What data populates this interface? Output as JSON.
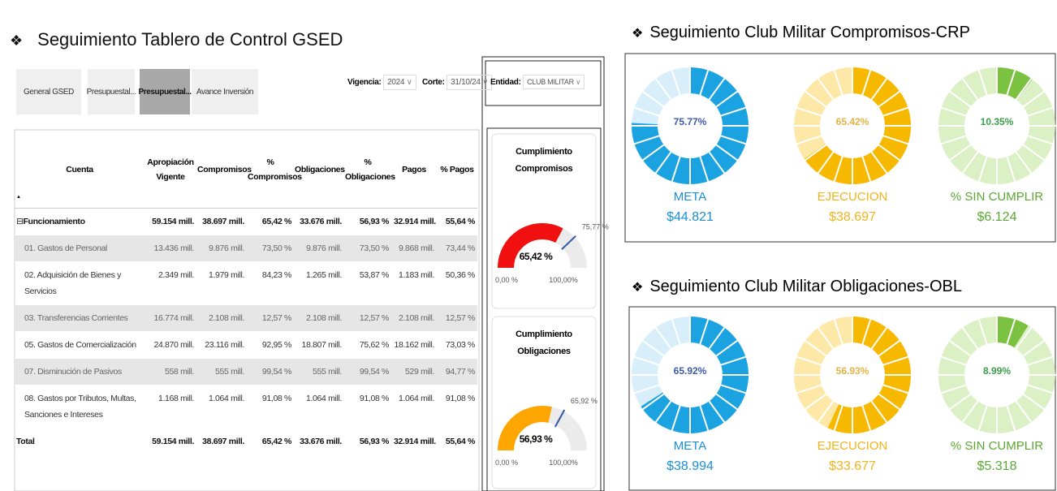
{
  "left": {
    "icon": "❖",
    "title": "Seguimiento Tablero de Control GSED",
    "tabs": [
      "General GSED",
      "Presupuestal...",
      "Presupuestal...",
      "Avance Inversión"
    ],
    "filters": {
      "vigencia_label": "Vigencia:",
      "vigencia": "2024",
      "corte_label": "Corte:",
      "corte": "31/10/24",
      "entidad_label": "Entidad:",
      "entidad": "CLUB MILITAR"
    },
    "table": {
      "columns": [
        "Cuenta",
        "Apropiación Vigente",
        "Compromisos",
        "% Compromisos",
        "Obligaciones",
        "% Obligaciones",
        "Pagos",
        "% Pagos"
      ],
      "rows": [
        [
          "Funcionamiento",
          "59.154 mill.",
          "38.697 mill.",
          "65,42 %",
          "33.676 mill.",
          "56,93 %",
          "32.914 mill.",
          "55,64 %"
        ],
        [
          "01. Gastos de Personal",
          "13.436 mill.",
          "9.876 mill.",
          "73,50 %",
          "9.876 mill.",
          "73,50 %",
          "9.868 mill.",
          "73,44 %"
        ],
        [
          "02. Adquisición de Bienes y Servicios",
          "2.349 mill.",
          "1.979 mill.",
          "84,23 %",
          "1.265 mill.",
          "53,87 %",
          "1.183 mill.",
          "50,36 %"
        ],
        [
          "03. Transferencias Corrientes",
          "16.774 mill.",
          "2.108 mill.",
          "12,57 %",
          "2.108 mill.",
          "12,57 %",
          "2.108 mill.",
          "12,57 %"
        ],
        [
          "05. Gastos de Comercialización",
          "24.870 mill.",
          "23.116 mill.",
          "92,95 %",
          "18.807 mill.",
          "75,62 %",
          "18.162 mill.",
          "73,03 %"
        ],
        [
          "07. Disminución de Pasivos",
          "558 mill.",
          "555 mill.",
          "99,54 %",
          "555 mill.",
          "99,54 %",
          "529 mill.",
          "94,77 %"
        ],
        [
          "08. Gastos por Tributos, Multas, Sanciones e Intereses",
          "1.168 mill.",
          "1.064 mill.",
          "91,08 %",
          "1.064 mill.",
          "91,08 %",
          "1.064 mill.",
          "91,08 %"
        ],
        [
          "Total",
          "59.154 mill.",
          "38.697 mill.",
          "65,42 %",
          "33.676 mill.",
          "56,93 %",
          "32.914 mill.",
          "55,64 %"
        ]
      ]
    },
    "gauges": [
      {
        "title": "Cumplimiento Compromisos",
        "value": 65.42,
        "label": "65,42 %",
        "target": 75.77,
        "target_label": "75,77 %",
        "min": 0,
        "min_label": "0,00 %",
        "max": 100,
        "max_label": "100,00%",
        "color": "#f01010"
      },
      {
        "title": "Cumplimiento Obligaciones",
        "value": 56.93,
        "label": "56,93 %",
        "target": 65.92,
        "target_label": "65,92 %",
        "min": 0,
        "min_label": "0,00 %",
        "max": 100,
        "max_label": "100,00%",
        "color": "#ffa500"
      }
    ]
  },
  "right": {
    "icon": "❖",
    "panels": [
      {
        "title": "Seguimiento Club Militar Compromisos-CRP",
        "donuts": [
          {
            "value": 75.77,
            "label": "75.77%",
            "name": "META",
            "amount": "$44.821",
            "color": "#1aa3e0"
          },
          {
            "value": 65.42,
            "label": "65.42%",
            "name": "EJECUCION",
            "amount": "$38.697",
            "color": "#f7b800"
          },
          {
            "value": 10.35,
            "label": "10.35%",
            "name": "% SIN CUMPLIR",
            "amount": "$6.124",
            "color": "#7cc241"
          }
        ]
      },
      {
        "title": "Seguimiento Club Militar Obligaciones-OBL",
        "donuts": [
          {
            "value": 65.92,
            "label": "65.92%",
            "name": "META",
            "amount": "$38.994",
            "color": "#1aa3e0"
          },
          {
            "value": 56.93,
            "label": "56.93%",
            "name": "EJECUCION",
            "amount": "$33.677",
            "color": "#f7b800"
          },
          {
            "value": 8.99,
            "label": "8.99%",
            "name": "% SIN CUMPLIR",
            "amount": "$5.318",
            "color": "#7cc241"
          }
        ]
      }
    ]
  }
}
